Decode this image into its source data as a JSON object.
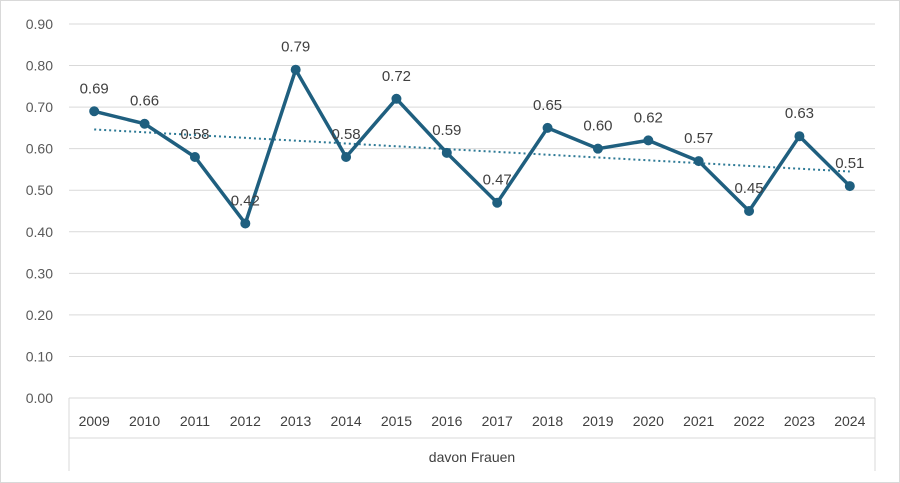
{
  "chart_data": {
    "type": "line",
    "categories": [
      "2009",
      "2010",
      "2011",
      "2012",
      "2013",
      "2014",
      "2015",
      "2016",
      "2017",
      "2018",
      "2019",
      "2020",
      "2021",
      "2022",
      "2023",
      "2024"
    ],
    "series": [
      {
        "values": [
          0.69,
          0.66,
          0.58,
          0.42,
          0.79,
          0.58,
          0.72,
          0.59,
          0.47,
          0.65,
          0.6,
          0.62,
          0.57,
          0.45,
          0.63,
          0.51
        ],
        "data_labels": [
          "0.69",
          "0.66",
          "0.58",
          "0.42",
          "0.79",
          "0.58",
          "0.72",
          "0.59",
          "0.47",
          "0.65",
          "0.60",
          "0.62",
          "0.57",
          "0.45",
          "0.63",
          "0.51"
        ],
        "color": "#1f5f7f",
        "marker": "circle"
      }
    ],
    "trendline": {
      "type": "linear",
      "style": "dotted",
      "color": "#2e7a96"
    },
    "xlabel": "davon Frauen",
    "ylim": [
      0,
      0.9
    ],
    "y_ticks": [
      "0.00",
      "0.10",
      "0.20",
      "0.30",
      "0.40",
      "0.50",
      "0.60",
      "0.70",
      "0.80",
      "0.90"
    ],
    "grid": true,
    "legend": "none"
  }
}
